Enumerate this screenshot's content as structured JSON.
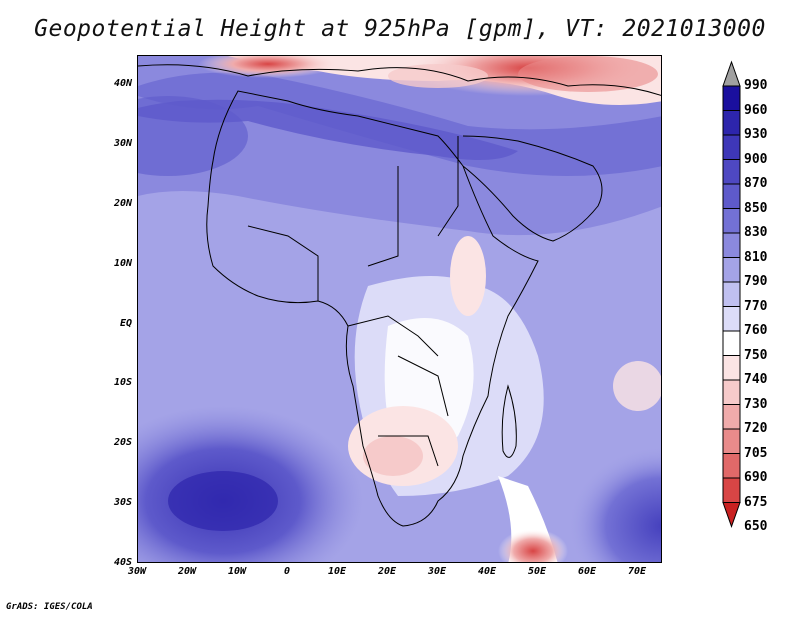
{
  "title": "Geopotential Height at 925hPa [gpm], VT: 2021013000",
  "credit": "GrADS: IGES/COLA",
  "lat_labels": [
    "40N",
    "30N",
    "20N",
    "10N",
    "EQ",
    "10S",
    "20S",
    "30S",
    "40S"
  ],
  "lon_labels": [
    "30W",
    "20W",
    "10W",
    "0",
    "10E",
    "20E",
    "30E",
    "40E",
    "50E",
    "60E",
    "70E"
  ],
  "colorbar": {
    "levels": [
      "990",
      "960",
      "930",
      "900",
      "870",
      "850",
      "830",
      "810",
      "790",
      "770",
      "760",
      "750",
      "740",
      "730",
      "720",
      "705",
      "690",
      "675",
      "650"
    ],
    "colors": [
      "#a0a0a0",
      "#1a0f9e",
      "#2d25ac",
      "#3e37b8",
      "#4e48c2",
      "#5e5acb",
      "#7371d5",
      "#8b89de",
      "#a4a3e7",
      "#c0c0f0",
      "#dcdcf8",
      "#ffffff",
      "#fbe4e4",
      "#f6caca",
      "#f0abab",
      "#e98b8b",
      "#e16969",
      "#d84545",
      "#c92121"
    ]
  }
}
